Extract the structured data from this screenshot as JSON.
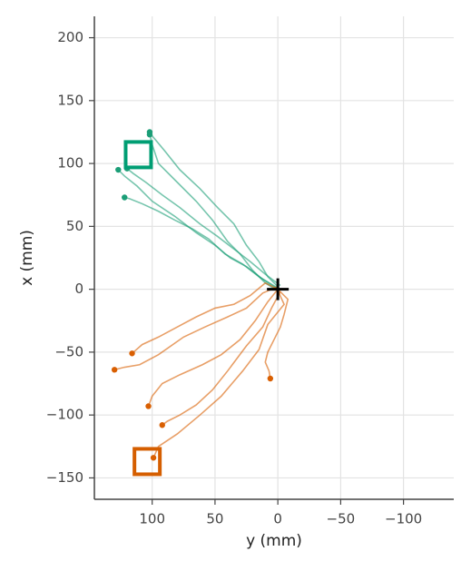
{
  "chart_data": {
    "type": "line",
    "xlabel": "y (mm)",
    "ylabel": "x (mm)",
    "xlim": [
      146,
      -140
    ],
    "ylim": [
      -167,
      217
    ],
    "xticks": [
      100,
      50,
      0,
      {
        "value": -50,
        "label": "−50"
      },
      {
        "value": -100,
        "label": "−100"
      }
    ],
    "yticks": [
      200,
      150,
      100,
      50,
      0,
      {
        "value": -50,
        "label": "−50"
      },
      {
        "value": -100,
        "label": "−100"
      },
      {
        "value": -150,
        "label": "−150"
      }
    ],
    "grid": true,
    "series": [
      {
        "color": "#1b9e77",
        "x": [
          0,
          8,
          15,
          25,
          35,
          48,
          62,
          78,
          90,
          100,
          102
        ],
        "values": [
          2,
          10,
          22,
          35,
          52,
          65,
          80,
          95,
          110,
          122,
          125
        ]
      },
      {
        "color": "#1b9e77",
        "x": [
          2,
          10,
          20,
          30,
          40,
          52,
          65,
          80,
          95,
          100,
          102
        ],
        "values": [
          0,
          5,
          15,
          28,
          38,
          55,
          70,
          85,
          100,
          115,
          123
        ]
      },
      {
        "color": "#1b9e77",
        "x": [
          0,
          12,
          25,
          38,
          50,
          65,
          82,
          100,
          112,
          122,
          127
        ],
        "values": [
          0,
          8,
          18,
          25,
          35,
          45,
          58,
          70,
          82,
          90,
          95
        ]
      },
      {
        "color": "#1b9e77",
        "x": [
          -2,
          10,
          22,
          35,
          48,
          62,
          78,
          92,
          105,
          115,
          120
        ],
        "values": [
          3,
          12,
          22,
          32,
          42,
          52,
          65,
          75,
          85,
          92,
          96
        ]
      },
      {
        "color": "#1b9e77",
        "x": [
          0,
          15,
          28,
          42,
          55,
          68,
          82,
          95,
          108,
          118,
          122
        ],
        "values": [
          1,
          10,
          20,
          28,
          40,
          48,
          55,
          62,
          68,
          72,
          73
        ]
      },
      {
        "color": "#d95f02",
        "x": [
          0,
          10,
          22,
          35,
          50,
          65,
          80,
          95,
          108,
          116
        ],
        "values": [
          0,
          5,
          -5,
          -12,
          -15,
          -22,
          -30,
          -38,
          -44,
          -51
        ]
      },
      {
        "color": "#d95f02",
        "x": [
          0,
          12,
          25,
          40,
          58,
          75,
          95,
          110,
          122,
          130
        ],
        "values": [
          2,
          -3,
          -15,
          -22,
          -30,
          -38,
          -52,
          -60,
          -62,
          -64
        ]
      },
      {
        "color": "#d95f02",
        "x": [
          0,
          8,
          18,
          30,
          45,
          60,
          78,
          92,
          100,
          103
        ],
        "values": [
          0,
          -10,
          -25,
          -40,
          -52,
          -60,
          -68,
          -75,
          -85,
          -93
        ]
      },
      {
        "color": "#d95f02",
        "x": [
          -2,
          5,
          12,
          25,
          40,
          52,
          65,
          78,
          88,
          92
        ],
        "values": [
          -2,
          -15,
          -30,
          -45,
          -65,
          -80,
          -92,
          -100,
          -105,
          -108
        ]
      },
      {
        "color": "#d95f02",
        "x": [
          0,
          -5,
          8,
          15,
          28,
          45,
          62,
          80,
          95,
          99
        ],
        "values": [
          -1,
          -12,
          -28,
          -48,
          -65,
          -85,
          -100,
          -115,
          -125,
          -134
        ]
      },
      {
        "color": "#d95f02",
        "x": [
          0,
          -8,
          -5,
          -2,
          3,
          8,
          10,
          7,
          6
        ],
        "values": [
          0,
          -8,
          -20,
          -30,
          -40,
          -50,
          -58,
          -65,
          -71
        ]
      }
    ],
    "targets": [
      {
        "x": 111,
        "y": 107,
        "color": "#009e73"
      },
      {
        "x": 104,
        "y": -137,
        "color": "#d55e00"
      }
    ],
    "start": {
      "x": 0,
      "y": 0,
      "color": "#000000"
    }
  }
}
